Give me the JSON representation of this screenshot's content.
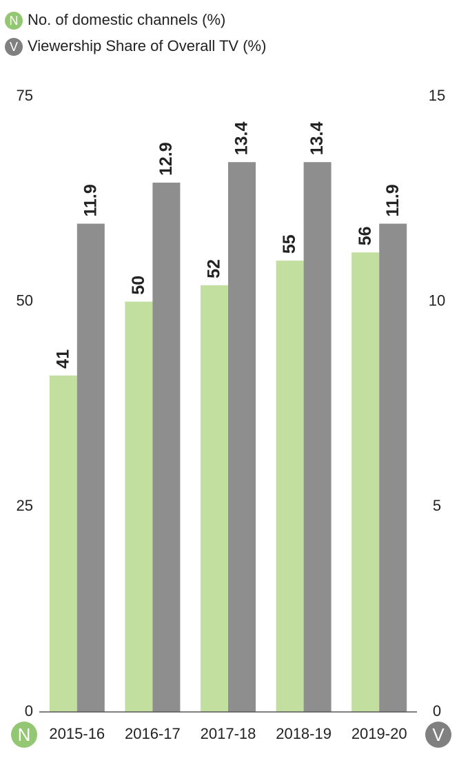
{
  "chart_data": {
    "type": "bar",
    "categories": [
      "2015-16",
      "2016-17",
      "2017-18",
      "2018-19",
      "2019-20"
    ],
    "series": [
      {
        "name": "No. of domestic channels (%)",
        "badge": "N",
        "badge_color": "#93c774",
        "color": "#c2df9f",
        "axis": "y",
        "values": [
          41,
          50,
          52,
          55,
          56
        ]
      },
      {
        "name": "Viewership Share of Overall TV (%)",
        "badge": "V",
        "badge_color": "#808080",
        "color": "#8e8e8e",
        "axis": "y2",
        "values": [
          11.9,
          12.9,
          13.4,
          13.4,
          11.9
        ]
      }
    ],
    "ylim": [
      0,
      75
    ],
    "yticks": [
      0,
      25,
      50,
      75
    ],
    "y2lim": [
      0,
      15
    ],
    "y2ticks": [
      0,
      5,
      10,
      15
    ]
  }
}
